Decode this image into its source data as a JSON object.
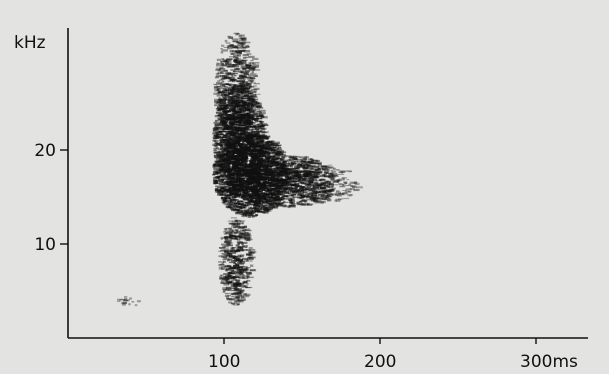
{
  "chart_data": {
    "type": "heatmap",
    "title": "",
    "xlabel": "",
    "ylabel": "",
    "y_unit_label": "kHz",
    "x_ticks": [
      {
        "value": 100,
        "label": "100"
      },
      {
        "value": 200,
        "label": "200"
      },
      {
        "value": 300,
        "label": "300ms"
      }
    ],
    "y_ticks": [
      {
        "value": 10,
        "label": "10"
      },
      {
        "value": 20,
        "label": "20"
      }
    ],
    "xlim": [
      0,
      330
    ],
    "ylim": [
      0,
      33
    ],
    "grid": false,
    "blobs": [
      {
        "x": [
          93,
          120
        ],
        "y": [
          21,
          32.5
        ],
        "intensity": 0.55
      },
      {
        "x": [
          92,
          125
        ],
        "y": [
          16,
          27
        ],
        "intensity": 0.85
      },
      {
        "x": [
          92,
          140
        ],
        "y": [
          13,
          22
        ],
        "intensity": 1.0
      },
      {
        "x": [
          115,
          170
        ],
        "y": [
          14,
          19.5
        ],
        "intensity": 0.7
      },
      {
        "x": [
          140,
          185
        ],
        "y": [
          14.5,
          18.5
        ],
        "intensity": 0.35
      },
      {
        "x": [
          96,
          117
        ],
        "y": [
          3.5,
          13
        ],
        "intensity": 0.6
      },
      {
        "x": [
          30,
          45
        ],
        "y": [
          3.3,
          4.5
        ],
        "intensity": 0.3
      }
    ],
    "colors": {
      "background": "#e3e3e1",
      "ink": "#111111"
    }
  }
}
